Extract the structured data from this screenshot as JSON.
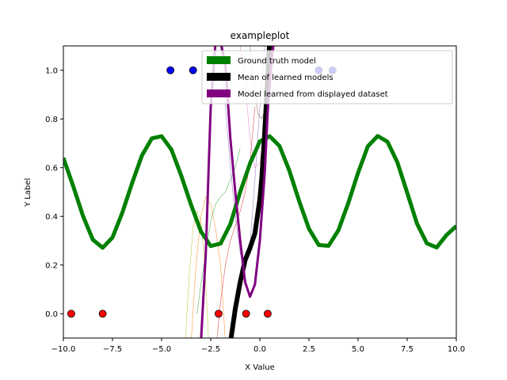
{
  "chart_data": {
    "type": "line",
    "title": "exampleplot",
    "xlabel": "X Value",
    "ylabel": "Y Label",
    "xlim": [
      -10,
      10
    ],
    "ylim": [
      -0.1,
      1.1
    ],
    "x_ticks": [
      -10.0,
      -7.5,
      -5.0,
      -2.5,
      0.0,
      2.5,
      5.0,
      7.5,
      10.0
    ],
    "x_tick_labels": [
      "−10.0",
      "−7.5",
      "−5.0",
      "−2.5",
      "0.0",
      "2.5",
      "5.0",
      "7.5",
      "10.0"
    ],
    "y_ticks": [
      0.0,
      0.2,
      0.4,
      0.6,
      0.8,
      1.0
    ],
    "y_tick_labels": [
      "0.0",
      "0.2",
      "0.4",
      "0.6",
      "0.8",
      "1.0"
    ],
    "grid": false,
    "legend_position": "top-right",
    "legend": [
      {
        "label": "Ground truth model",
        "color": "#008000"
      },
      {
        "label": "Mean of learned models",
        "color": "#000000"
      },
      {
        "label": "Model learned from displayed dataset",
        "color": "#800080"
      }
    ],
    "series": [
      {
        "name": "Ground truth model",
        "color": "#008000",
        "x": [
          -10.0,
          -9.5,
          -9.0,
          -8.5,
          -8.0,
          -7.5,
          -7.0,
          -6.5,
          -6.0,
          -5.5,
          -5.0,
          -4.5,
          -4.0,
          -3.5,
          -3.0,
          -2.5,
          -2.0,
          -1.5,
          -1.0,
          -0.5,
          0.0,
          0.5,
          1.0,
          1.5,
          2.0,
          2.5,
          3.0,
          3.5,
          4.0,
          4.5,
          5.0,
          5.5,
          6.0,
          6.5,
          7.0,
          7.5,
          8.0,
          8.5,
          9.0,
          9.5,
          10.0
        ],
        "y": [
          0.64,
          0.524,
          0.401,
          0.304,
          0.271,
          0.313,
          0.415,
          0.537,
          0.65,
          0.72,
          0.729,
          0.674,
          0.567,
          0.447,
          0.338,
          0.278,
          0.288,
          0.368,
          0.5,
          0.617,
          0.708,
          0.729,
          0.689,
          0.588,
          0.463,
          0.349,
          0.282,
          0.279,
          0.343,
          0.454,
          0.579,
          0.688,
          0.73,
          0.706,
          0.622,
          0.497,
          0.37,
          0.289,
          0.272,
          0.323,
          0.36
        ]
      },
      {
        "name": "Mean of learned models",
        "color": "#000000",
        "x": [
          -1.5,
          -1.25,
          -1.0,
          -0.75,
          -0.5,
          -0.25,
          0.0,
          0.1,
          0.2,
          0.3,
          0.4,
          0.5
        ],
        "y": [
          -0.12,
          0.02,
          0.13,
          0.22,
          0.27,
          0.33,
          0.47,
          0.56,
          0.68,
          0.82,
          0.97,
          1.12
        ]
      },
      {
        "name": "Model learned from displayed dataset",
        "color": "#800080",
        "x": [
          -3.0,
          -2.75,
          -2.5,
          -2.25,
          -2.0,
          -1.75,
          -1.5,
          -1.25,
          -1.0,
          -0.75,
          -0.5,
          -0.25,
          0.0,
          0.25,
          0.4,
          0.55,
          0.7
        ],
        "y": [
          -0.12,
          0.25,
          0.85,
          1.12,
          1.12,
          1.02,
          0.72,
          0.5,
          0.3,
          0.13,
          0.07,
          0.12,
          0.3,
          0.58,
          0.83,
          1.0,
          1.12
        ]
      }
    ],
    "learned_models": [
      {
        "color": "#2ca02c",
        "x": [
          -3.2,
          -3.0,
          -2.75,
          -2.5,
          -2.25,
          -2.0,
          -1.75,
          -1.5,
          -1.25,
          -1.0
        ],
        "y": [
          0.0,
          0.12,
          0.25,
          0.38,
          0.45,
          0.48,
          0.5,
          0.55,
          0.6,
          0.68
        ]
      },
      {
        "color": "#d62728",
        "x": [
          -2.2,
          -2.0,
          -1.75,
          -1.5,
          -1.25,
          -1.0,
          -0.75,
          -0.5,
          -0.25
        ],
        "y": [
          -0.12,
          0.05,
          0.2,
          0.3,
          0.36,
          0.42,
          0.5,
          0.62,
          0.85
        ]
      },
      {
        "color": "#ff7f0e",
        "x": [
          -3.5,
          -3.25,
          -3.0,
          -2.75,
          -2.5,
          -2.25,
          -2.0,
          -1.75
        ],
        "y": [
          -0.12,
          0.2,
          0.4,
          0.48,
          0.45,
          0.35,
          0.2,
          -0.12
        ]
      },
      {
        "color": "#9467bd",
        "x": [
          -2.0,
          -1.75,
          -1.5,
          -1.25,
          -1.0,
          -0.75,
          -0.5,
          -0.25,
          0.0,
          0.25
        ],
        "y": [
          1.1,
          0.85,
          0.6,
          0.4,
          0.25,
          0.18,
          0.28,
          0.55,
          0.85,
          1.1
        ]
      },
      {
        "color": "#e377c2",
        "x": [
          -1.0,
          -0.75,
          -0.5,
          -0.25,
          0.0,
          0.25,
          0.5,
          0.75
        ],
        "y": [
          1.1,
          0.95,
          0.72,
          0.6,
          0.62,
          0.75,
          0.9,
          1.1
        ]
      },
      {
        "color": "#8c564b",
        "x": [
          -0.5,
          -0.3,
          -0.1,
          0.1,
          0.3,
          0.5,
          0.7
        ],
        "y": [
          1.1,
          0.95,
          0.82,
          0.8,
          0.85,
          0.98,
          1.1
        ]
      },
      {
        "color": "#bcbd22",
        "x": [
          -3.8,
          -3.6,
          -3.4,
          -3.2,
          -3.0,
          -2.8,
          -2.6
        ],
        "y": [
          -0.12,
          0.15,
          0.35,
          0.42,
          0.38,
          0.2,
          -0.12
        ]
      }
    ],
    "data_points": {
      "class_1": {
        "color": "#0000ff",
        "x": [
          -4.55,
          -3.4,
          3.0,
          3.7
        ],
        "y": [
          1.0,
          1.0,
          1.0,
          1.0
        ]
      },
      "class_0": {
        "color": "#ff0000",
        "x": [
          -9.6,
          -8.0,
          -2.1,
          -0.7,
          0.4
        ],
        "y": [
          0.0,
          0.0,
          0.0,
          0.0,
          0.0
        ]
      }
    }
  }
}
